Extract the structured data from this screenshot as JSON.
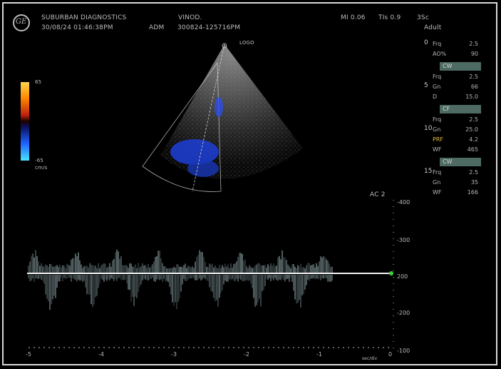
{
  "header": {
    "institution": "SUBURBAN DIAGNOSTICS",
    "datetime": "30/08/24 01:46:38PM",
    "patient": "VINOD.",
    "adm_label": "ADM",
    "adm_value": "300824-125716PM",
    "mi": "MI 0.06",
    "tis": "TIs 0.9",
    "probe": "3Sc",
    "preset": "Adult"
  },
  "image_labels": {
    "logo_text": "LOGO",
    "colorbar_top": "65",
    "colorbar_bottom": "-65",
    "colorbar_unit": "cm/s",
    "doppler_label": "AC 2"
  },
  "params": {
    "group1": {
      "num": "0",
      "rows": [
        {
          "k": "Frq",
          "v": "2.5"
        },
        {
          "k": "AO%",
          "v": "90"
        }
      ]
    },
    "cw": {
      "pill": "CW",
      "num": "5",
      "rows": [
        {
          "k": "Frq",
          "v": "2.5"
        },
        {
          "k": "Gn",
          "v": "66"
        },
        {
          "k": "D",
          "v": "15.0"
        }
      ]
    },
    "cf": {
      "pill": "CF",
      "num": "10",
      "rows": [
        {
          "k": "Frq",
          "v": "2.5"
        },
        {
          "k": "Gn",
          "v": "25.0"
        },
        {
          "k": "PRF",
          "v": "4.2"
        },
        {
          "k": "WF",
          "v": "465"
        }
      ]
    },
    "cw2": {
      "pill": "CW",
      "num": "15",
      "rows": [
        {
          "k": "Frq",
          "v": "2.5"
        },
        {
          "k": "Gn",
          "v": "35"
        },
        {
          "k": "WF",
          "v": "166"
        }
      ]
    }
  },
  "velocity_scale": {
    "ticks": [
      "-400",
      "-300",
      "200",
      "-200",
      "-100"
    ],
    "unit": "cm/s"
  },
  "time_axis": {
    "labels": [
      "-5",
      "-4",
      "-3",
      "-2",
      "-1",
      "0"
    ],
    "unit": "sec/div"
  },
  "colors": {
    "baseline": "#f4f4f4",
    "pill_bg": "#4e6b63",
    "doppler_blue": "#1f3fd8",
    "spectrum": "#c9e9ee"
  }
}
